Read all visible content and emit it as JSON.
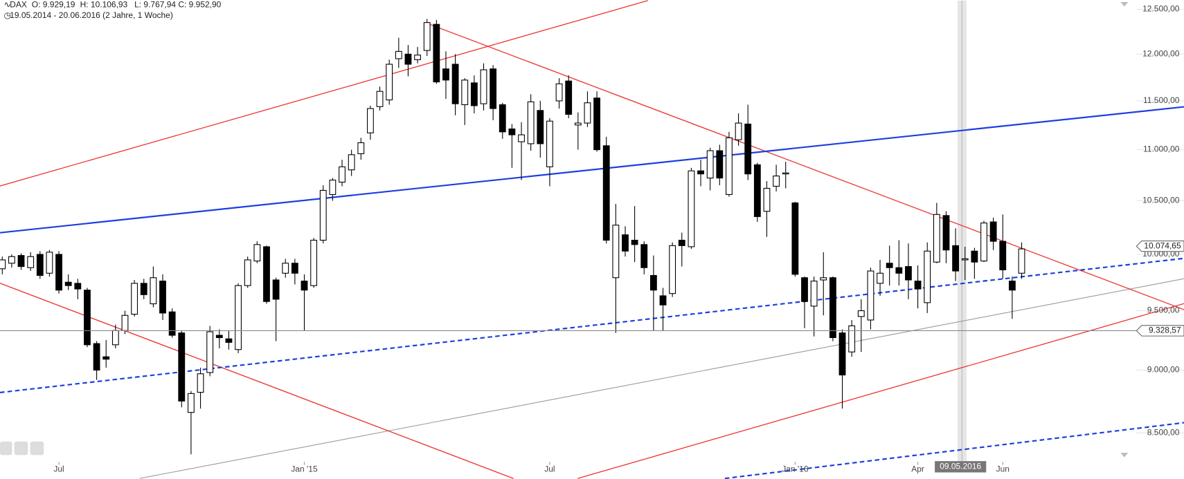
{
  "chart_data": {
    "type": "candlestick",
    "title": "DAX",
    "summary": [
      "O: 9.929,19",
      "H: 10.106,93",
      "L: 9.767,94",
      "C: 9.952,90"
    ],
    "subtitle": "19.05.2014 - 20.06.2016 (2 Jahre, 1 Woche)",
    "log_scale": true,
    "up_color": "#ffffff",
    "down_color": "#000000",
    "ylim": [
      8290,
      12600
    ],
    "yticks": [
      {
        "value": 8500,
        "label": "8.500,00"
      },
      {
        "value": 9000,
        "label": "9.000,00"
      },
      {
        "value": 9500,
        "label": "9.500,00"
      },
      {
        "value": 10000,
        "label": "10.000,00"
      },
      {
        "value": 10500,
        "label": "10.500,00"
      },
      {
        "value": 11000,
        "label": "11.000,00"
      },
      {
        "value": 11500,
        "label": "11.500,00"
      },
      {
        "value": 12000,
        "label": "12.000,00"
      },
      {
        "value": 12500,
        "label": "12.500,00"
      }
    ],
    "xticks": [
      {
        "value": 6,
        "label": "Jul"
      },
      {
        "value": 32,
        "label": "Jan '15"
      },
      {
        "value": 58,
        "label": "Jul"
      },
      {
        "value": 84,
        "label": "Jan '16"
      },
      {
        "value": 97,
        "label": "Apr"
      },
      {
        "value": 106,
        "label": "Jun"
      }
    ],
    "price_labels": [
      {
        "value": 10074.65,
        "label": "10.074,65"
      },
      {
        "value": 9328.57,
        "label": "9.328,57"
      }
    ],
    "cursor_date": "09.05.2016",
    "open": [
      9870,
      9920,
      9990,
      9880,
      10000,
      9830,
      10000,
      9750,
      9740,
      9680,
      9220,
      9110,
      9210,
      9330,
      9470,
      9740,
      9560,
      9760,
      9490,
      9310,
      8660,
      8820,
      8980,
      9290,
      9260,
      9170,
      9720,
      9940,
      10070,
      9770,
      9830,
      9920,
      9760,
      9720,
      10130,
      10560,
      10680,
      10800,
      10960,
      11170,
      11440,
      11510,
      11950,
      12000,
      11940,
      12040,
      12330,
      11840,
      11890,
      11460,
      11690,
      11470,
      11840,
      11460,
      11210,
      11080,
      11060,
      11400,
      10830,
      11500,
      11710,
      11250,
      11270,
      11530,
      11040,
      9790,
      10180,
      10130,
      10090,
      9810,
      9630,
      9650,
      10130,
      10070,
      10790,
      10720,
      10990,
      10560,
      11100,
      11260,
      10850,
      10400,
      10640,
      10760,
      10480,
      9790,
      9540,
      9770,
      9790,
      9310,
      9150,
      9450,
      9420,
      9740,
      9920,
      9880,
      9890,
      9760,
      9570,
      9930,
      10360,
      10080,
      9950,
      10030,
      9940,
      10300,
      10120,
      9760,
      9830
    ],
    "high": [
      9980,
      10000,
      10010,
      10020,
      10030,
      10040,
      10030,
      9820,
      9780,
      9700,
      9240,
      9250,
      9380,
      9500,
      9770,
      9780,
      9890,
      9820,
      9520,
      9330,
      8830,
      9020,
      9370,
      9340,
      9330,
      9740,
      9980,
      10120,
      10080,
      9790,
      9960,
      9960,
      9820,
      10150,
      10650,
      10720,
      10900,
      11000,
      11120,
      11450,
      11650,
      11940,
      12180,
      12100,
      12080,
      12390,
      12380,
      12030,
      12000,
      11740,
      11770,
      11900,
      11880,
      11480,
      11260,
      11280,
      11570,
      11500,
      11320,
      11740,
      11770,
      11380,
      11600,
      11600,
      11130,
      10470,
      10260,
      10450,
      10120,
      9990,
      9700,
      10110,
      10200,
      10820,
      10900,
      11020,
      11050,
      11180,
      11370,
      11460,
      10870,
      10690,
      10850,
      10880,
      10490,
      9800,
      9800,
      10020,
      9800,
      9340,
      9420,
      9600,
      9880,
      9950,
      10080,
      10130,
      10100,
      9900,
      10110,
      10480,
      10400,
      10240,
      10070,
      10060,
      10310,
      10340,
      10370,
      9800,
      10110
    ],
    "low": [
      9820,
      9880,
      9860,
      9850,
      9780,
      9800,
      9650,
      9680,
      9600,
      9190,
      8920,
      9020,
      9180,
      9300,
      9450,
      9600,
      9530,
      9420,
      9270,
      8700,
      8336,
      8690,
      8950,
      9180,
      9170,
      9140,
      9700,
      9920,
      9560,
      9240,
      9790,
      9730,
      9330,
      9700,
      10100,
      10500,
      10640,
      10740,
      10900,
      11100,
      11400,
      11460,
      11850,
      11760,
      11900,
      11980,
      11680,
      11520,
      11350,
      11250,
      11370,
      11400,
      11300,
      11110,
      10820,
      10700,
      10990,
      10920,
      10640,
      11420,
      11320,
      11000,
      11230,
      10980,
      10100,
      9310,
      9980,
      9930,
      9820,
      9330,
      9330,
      9620,
      9890,
      10050,
      10640,
      10600,
      10650,
      10540,
      11040,
      10700,
      10300,
      10160,
      10590,
      10620,
      9800,
      9350,
      9280,
      9460,
      9240,
      8690,
      9110,
      9150,
      9340,
      9630,
      9720,
      9720,
      9600,
      9520,
      9480,
      9920,
      9920,
      9760,
      9770,
      9780,
      9930,
      10040,
      9780,
      9430,
      9780
    ],
    "close": [
      9950,
      9980,
      9890,
      9980,
      9810,
      10020,
      9680,
      9720,
      9690,
      9210,
      9000,
      9090,
      9330,
      9460,
      9740,
      9640,
      9790,
      9480,
      9290,
      8750,
      8810,
      8970,
      9320,
      9270,
      9230,
      9720,
      9950,
      10090,
      9580,
      9600,
      9920,
      9830,
      9680,
      10130,
      10600,
      10700,
      10830,
      10950,
      11070,
      11420,
      11600,
      11890,
      12030,
      11890,
      11990,
      12350,
      11700,
      11720,
      11470,
      11720,
      11450,
      11830,
      11420,
      11180,
      11150,
      11150,
      11490,
      11060,
      11290,
      11680,
      11360,
      11270,
      11480,
      11000,
      10130,
      10270,
      10030,
      10090,
      9880,
      9680,
      9550,
      10080,
      10080,
      10790,
      10760,
      10990,
      10720,
      11120,
      11270,
      10760,
      10350,
      10620,
      10740,
      10770,
      9820,
      9580,
      9760,
      9790,
      9270,
      8960,
      9370,
      9500,
      9850,
      9830,
      9880,
      9830,
      9770,
      9690,
      10030,
      10370,
      10040,
      9850,
      9960,
      9930,
      10290,
      10120,
      9860,
      9680,
      10050
    ]
  }
}
